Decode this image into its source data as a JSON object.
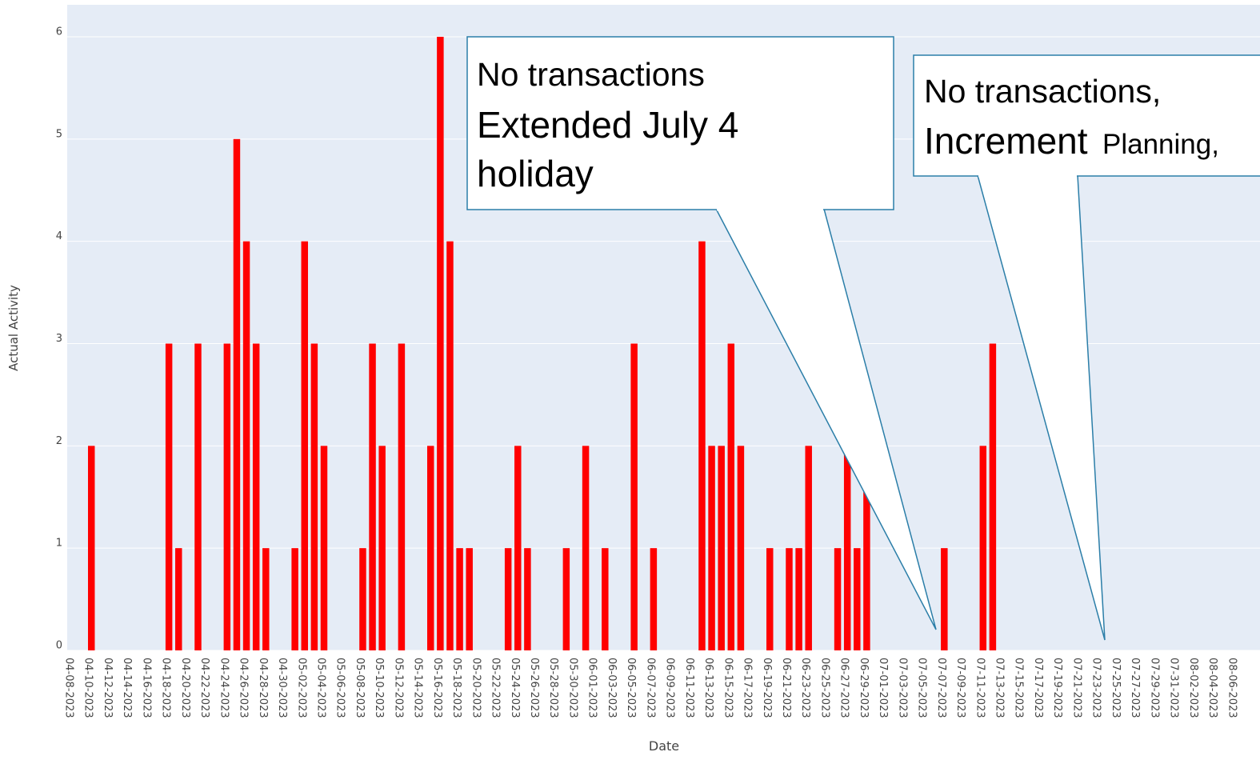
{
  "chart_data": {
    "type": "bar",
    "xlabel": "Date",
    "ylabel": "Actual Activity",
    "color": "#ff0000",
    "x": [
      "04-10-2023",
      "04-18-2023",
      "04-19-2023",
      "04-21-2023",
      "04-24-2023",
      "04-25-2023",
      "04-26-2023",
      "04-27-2023",
      "04-28-2023",
      "05-01-2023",
      "05-02-2023",
      "05-03-2023",
      "05-04-2023",
      "05-08-2023",
      "05-09-2023",
      "05-10-2023",
      "05-12-2023",
      "05-15-2023",
      "05-16-2023",
      "05-17-2023",
      "05-18-2023",
      "05-19-2023",
      "05-23-2023",
      "05-24-2023",
      "05-25-2023",
      "05-29-2023",
      "05-31-2023",
      "06-02-2023",
      "06-05-2023",
      "06-07-2023",
      "06-12-2023",
      "06-13-2023",
      "06-14-2023",
      "06-15-2023",
      "06-16-2023",
      "06-19-2023",
      "06-21-2023",
      "06-22-2023",
      "06-23-2023",
      "06-26-2023",
      "06-27-2023",
      "06-28-2023",
      "06-29-2023",
      "07-07-2023",
      "07-11-2023",
      "07-12-2023"
    ],
    "values": [
      2,
      3,
      1,
      3,
      3,
      5,
      4,
      3,
      1,
      1,
      4,
      3,
      2,
      1,
      3,
      2,
      3,
      2,
      6,
      4,
      1,
      1,
      1,
      2,
      1,
      1,
      2,
      1,
      3,
      1,
      4,
      2,
      2,
      3,
      2,
      1,
      1,
      1,
      2,
      1,
      2,
      1,
      2,
      1,
      2,
      3
    ],
    "xlim": [
      "04-08-2023",
      "08-08-2023"
    ],
    "xticks": [
      "04-08-2023",
      "04-10-2023",
      "04-12-2023",
      "04-14-2023",
      "04-16-2023",
      "04-18-2023",
      "04-20-2023",
      "04-22-2023",
      "04-24-2023",
      "04-26-2023",
      "04-28-2023",
      "04-30-2023",
      "05-02-2023",
      "05-04-2023",
      "05-06-2023",
      "05-08-2023",
      "05-10-2023",
      "05-12-2023",
      "05-14-2023",
      "05-16-2023",
      "05-18-2023",
      "05-20-2023",
      "05-22-2023",
      "05-24-2023",
      "05-26-2023",
      "05-28-2023",
      "05-30-2023",
      "06-01-2023",
      "06-03-2023",
      "06-05-2023",
      "06-07-2023",
      "06-09-2023",
      "06-11-2023",
      "06-13-2023",
      "06-15-2023",
      "06-17-2023",
      "06-19-2023",
      "06-21-2023",
      "06-23-2023",
      "06-25-2023",
      "06-27-2023",
      "06-29-2023",
      "07-01-2023",
      "07-03-2023",
      "07-05-2023",
      "07-07-2023",
      "07-09-2023",
      "07-11-2023",
      "07-13-2023",
      "07-15-2023",
      "07-17-2023",
      "07-19-2023",
      "07-21-2023",
      "07-23-2023",
      "07-25-2023",
      "07-27-2023",
      "07-29-2023",
      "07-31-2023",
      "08-02-2023",
      "08-04-2023",
      "08-06-2023"
    ],
    "ylim": [
      0,
      6
    ],
    "yticks": [
      0,
      1,
      2,
      3,
      4,
      5,
      6
    ],
    "grid": true,
    "annotations": [
      {
        "lines": [
          "No transactions",
          "Extended July 4",
          "holiday"
        ]
      },
      {
        "lines": [
          "No transactions,",
          "Increment",
          "Planning,"
        ]
      }
    ]
  }
}
